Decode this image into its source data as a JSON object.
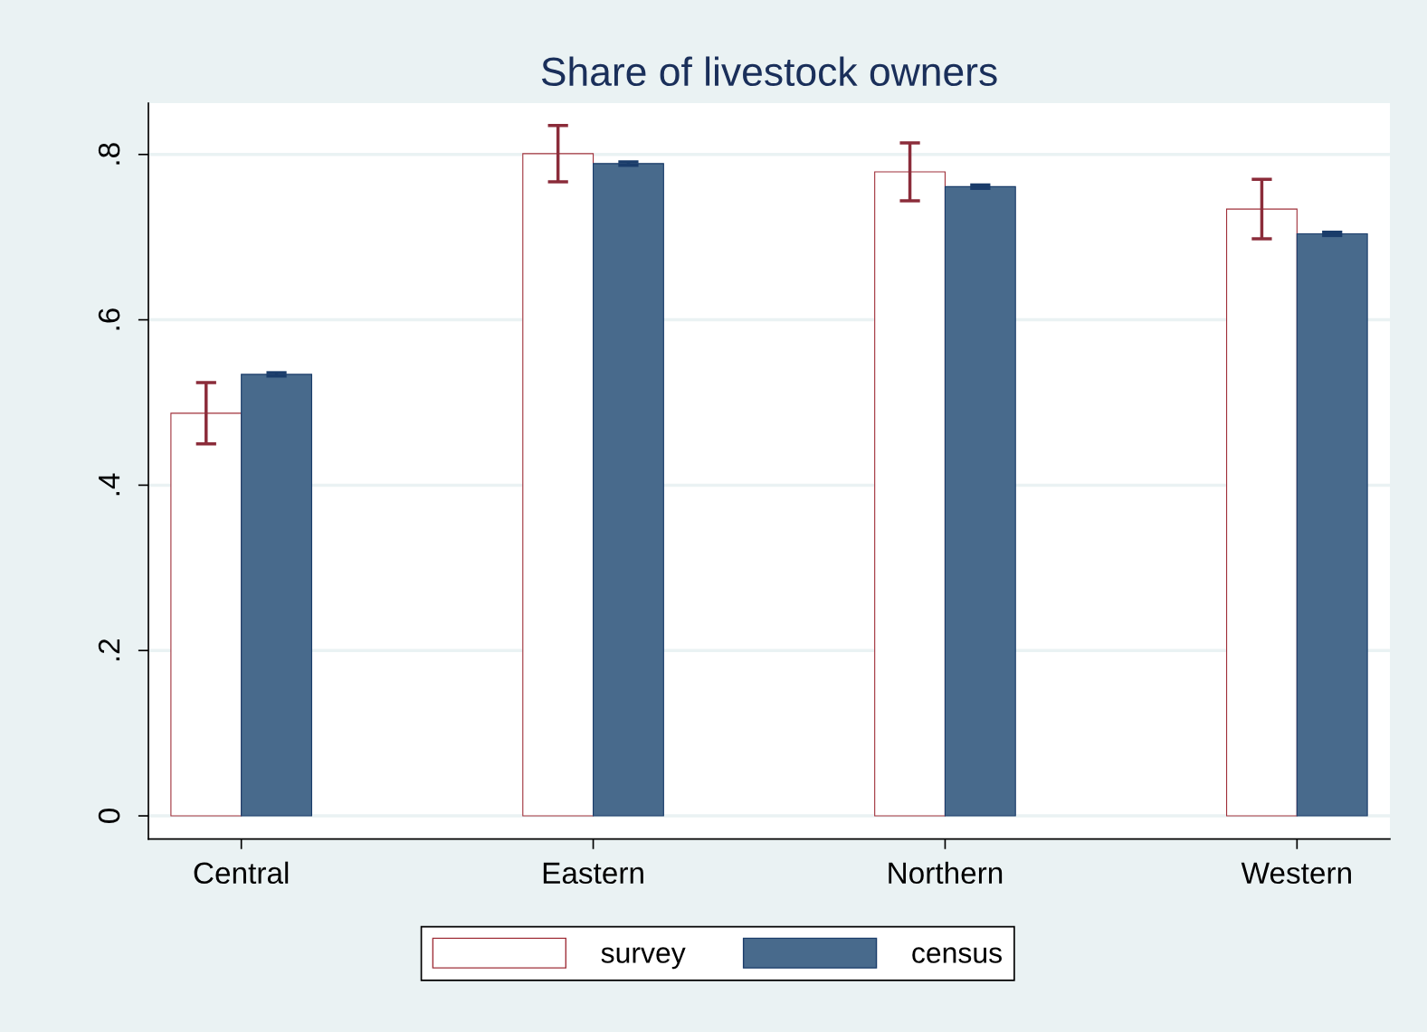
{
  "chart_data": {
    "type": "bar",
    "title": "Share of livestock owners",
    "categories": [
      "Central",
      "Eastern",
      "Northern",
      "Western"
    ],
    "series": [
      {
        "name": "survey",
        "color": "#ffffff",
        "values": [
          0.487,
          0.801,
          0.779,
          0.734
        ],
        "errors": [
          0.037,
          0.034,
          0.035,
          0.036
        ]
      },
      {
        "name": "census",
        "color": "#486a8c",
        "values": [
          0.534,
          0.789,
          0.761,
          0.704
        ],
        "errors": [
          0.002,
          0.002,
          0.002,
          0.002
        ]
      }
    ],
    "ylim": [
      -0.028,
      0.862
    ],
    "yticks": [
      0,
      {
        "value": 0.2,
        "label": ".2"
      },
      {
        "value": 0.4,
        "label": ".4"
      },
      {
        "value": 0.6,
        "label": ".6"
      },
      {
        "value": 0.8,
        "label": ".8"
      }
    ],
    "grid": "y",
    "legend": "bottom"
  }
}
